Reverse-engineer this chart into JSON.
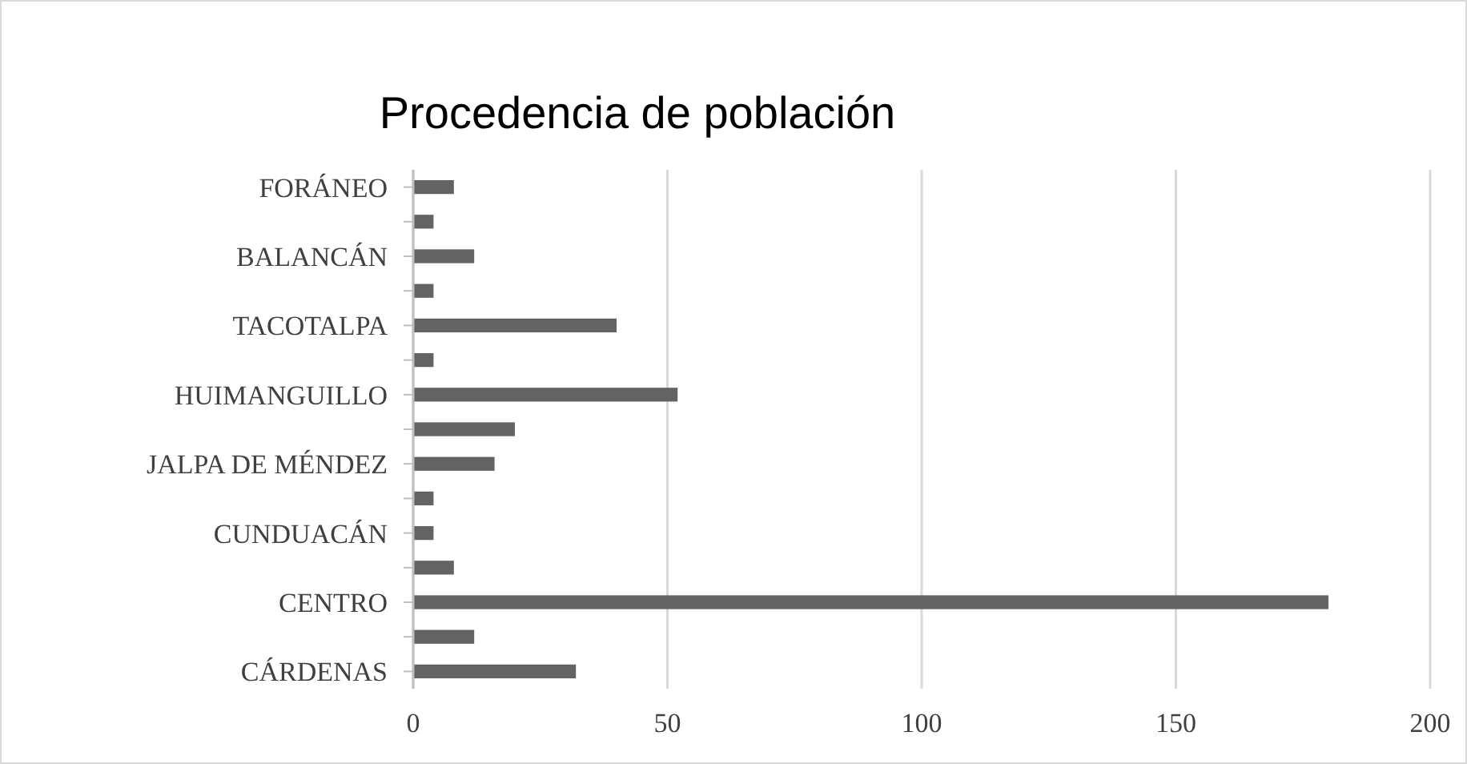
{
  "chart_data": {
    "type": "bar",
    "orientation": "horizontal",
    "title": "Procedencia de población",
    "categories": [
      "FORÁNEO",
      null,
      "BALANCÁN",
      null,
      "TACOTALPA",
      null,
      "HUIMANGUILLO",
      null,
      "JALPA DE MÉNDEZ",
      null,
      "CUNDUACÁN",
      null,
      "CENTRO",
      null,
      "CÁRDENAS"
    ],
    "values": [
      8,
      4,
      12,
      4,
      40,
      4,
      52,
      20,
      16,
      4,
      4,
      8,
      180,
      12,
      32
    ],
    "color": "#636363",
    "xlim": [
      0,
      200
    ],
    "xticks": [
      0,
      50,
      100,
      150,
      200
    ],
    "grid": "x"
  }
}
